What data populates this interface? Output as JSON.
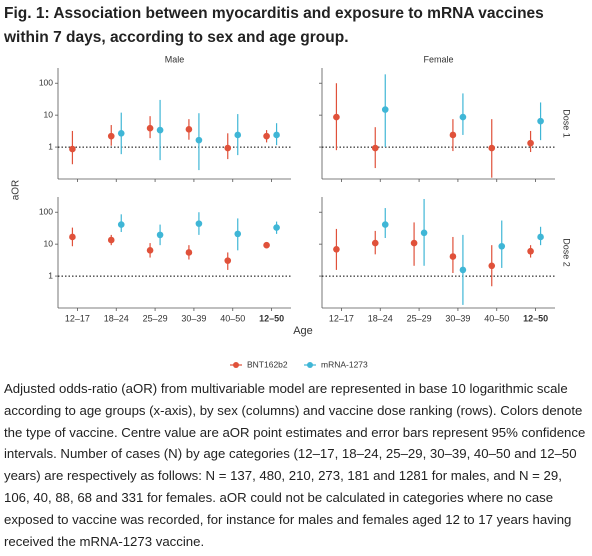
{
  "chart_data": {
    "type": "dot-errorbar",
    "title": "Fig. 1: Association between myocarditis and exposure to mRNA vaccines within 7 days, according to sex and age group.",
    "x_label": "Age",
    "y_label": "aOR",
    "columns": [
      "Male",
      "Female"
    ],
    "rows": [
      "Dose 1",
      "Dose 2"
    ],
    "categories": [
      "12–17",
      "18–24",
      "25–29",
      "30–39",
      "40–50",
      "12–50"
    ],
    "log_scale": true,
    "ylim": [
      0.1,
      300
    ],
    "yticks": [
      1,
      10,
      100
    ],
    "reference_line": 1,
    "series": [
      {
        "name": "BNT162b2",
        "color": "#e0513a",
        "panels": [
          {
            "values": [
              0.87,
              2.2,
              3.9,
              3.6,
              0.93,
              2.2
            ],
            "lower": [
              0.29,
              1.1,
              1.9,
              1.7,
              0.42,
              1.4
            ],
            "upper": [
              3.2,
              4.9,
              9.3,
              7.5,
              2.7,
              3.4
            ]
          },
          {
            "values": [
              8.7,
              0.93,
              null,
              2.4,
              0.93,
              1.33
            ],
            "lower": [
              0.8,
              0.22,
              null,
              0.75,
              0.11,
              0.7
            ],
            "upper": [
              100,
              4.2,
              null,
              7.5,
              7.5,
              3.2
            ]
          },
          {
            "values": [
              16.8,
              13.5,
              6.4,
              5.5,
              3.05,
              9.3
            ],
            "lower": [
              8.6,
              9.3,
              3.8,
              3.3,
              1.56,
              8
            ],
            "upper": [
              33,
              19.5,
              10.8,
              9.3,
              5.5,
              10.8
            ]
          },
          {
            "values": [
              6.9,
              10.8,
              10.8,
              4.1,
              2.1,
              6
            ],
            "lower": [
              1.56,
              4.8,
              2.1,
              1.25,
              0.48,
              3.8
            ],
            "upper": [
              30,
              26,
              48,
              16.8,
              9.3,
              9.3
            ]
          }
        ]
      },
      {
        "name": "mRNA-1273",
        "color": "#3fb6d6",
        "panels": [
          {
            "values": [
              null,
              2.7,
              3.4,
              1.65,
              2.4,
              2.4
            ],
            "lower": [
              null,
              0.6,
              0.39,
              0.19,
              0.56,
              1.15
            ],
            "upper": [
              null,
              12,
              30,
              11.5,
              10.8,
              5.6
            ]
          },
          {
            "values": [
              null,
              15,
              null,
              8.7,
              null,
              6.5
            ],
            "lower": [
              null,
              1,
              null,
              2.4,
              null,
              1.65
            ],
            "upper": [
              null,
              190,
              null,
              48,
              null,
              25
            ]
          },
          {
            "values": [
              null,
              41,
              19.5,
              44,
              21,
              33
            ],
            "lower": [
              null,
              24,
              9.3,
              19.5,
              6.4,
              21
            ],
            "upper": [
              null,
              86,
              41,
              100,
              64,
              51
            ]
          },
          {
            "values": [
              null,
              41,
              22.6,
              1.56,
              8.6,
              16.8
            ],
            "lower": [
              null,
              15.6,
              2.1,
              0.125,
              1.8,
              9.3
            ],
            "upper": [
              null,
              135,
              260,
              19.5,
              55,
              35
            ]
          }
        ]
      }
    ]
  },
  "caption": "Adjusted odds-ratio (aOR) from multivariable model are represented in base 10 logarithmic scale according to age groups (x-axis), by sex (columns) and vaccine dose ranking (rows). Colors denote the type of vaccine. Centre value are aOR point estimates and error bars represent 95% confidence intervals. Number of cases (N) by age categories (12–17, 18–24, 25–29, 30–39, 40–50 and 12–50 years) are respectively as follows: N = 137, 480, 210, 273, 181 and 1281 for males, and N = 29, 106, 40, 88, 68 and 331 for females. aOR could not be calculated in categories where no case exposed to vaccine was recorded, for instance for males and females aged 12 to 17 years having received the mRNA-1273 vaccine."
}
